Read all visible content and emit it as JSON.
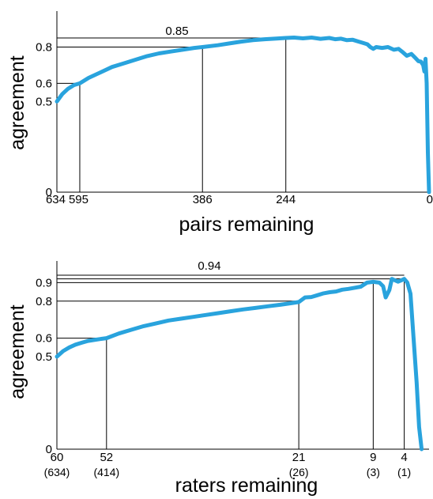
{
  "chart_data": [
    {
      "type": "line",
      "xlabel": "pairs remaining",
      "ylabel": "agreement",
      "x_reversed": true,
      "xlim": [
        634,
        0
      ],
      "ylim": [
        0,
        0.85
      ],
      "x_ticks": [
        {
          "value": 634,
          "label": "634"
        },
        {
          "value": 595,
          "label": "595"
        },
        {
          "value": 386,
          "label": "386"
        },
        {
          "value": 244,
          "label": "244"
        },
        {
          "value": 0,
          "label": "0"
        }
      ],
      "y_ticks": [
        {
          "value": 0,
          "label": "0"
        },
        {
          "value": 0.5,
          "label": "0.5"
        },
        {
          "value": 0.6,
          "label": "0.6"
        },
        {
          "value": 0.8,
          "label": "0.8"
        }
      ],
      "annotation": {
        "label": "0.85",
        "value": 0.85
      },
      "guides": [
        {
          "x": 595,
          "y": 0.6
        },
        {
          "x": 386,
          "y": 0.8
        },
        {
          "x": 244,
          "y": 0.85
        }
      ],
      "color": "#29a3dd",
      "grid": false,
      "series": [
        {
          "x": [
            634,
            625,
            615,
            605,
            595,
            580,
            560,
            540,
            520,
            500,
            480,
            460,
            440,
            420,
            400,
            386,
            360,
            340,
            320,
            300,
            280,
            260,
            244,
            230,
            215,
            200,
            185,
            170,
            160,
            150,
            140,
            130,
            120,
            112,
            105,
            100,
            95,
            90,
            80,
            70,
            60,
            52,
            45,
            38,
            30,
            24,
            18,
            14,
            10,
            8,
            6,
            4,
            2,
            0
          ],
          "y": [
            0.5,
            0.54,
            0.57,
            0.59,
            0.6,
            0.63,
            0.66,
            0.69,
            0.71,
            0.73,
            0.75,
            0.765,
            0.775,
            0.785,
            0.795,
            0.8,
            0.81,
            0.82,
            0.83,
            0.838,
            0.843,
            0.847,
            0.85,
            0.852,
            0.848,
            0.852,
            0.845,
            0.85,
            0.843,
            0.846,
            0.838,
            0.84,
            0.83,
            0.822,
            0.815,
            0.8,
            0.79,
            0.8,
            0.795,
            0.8,
            0.785,
            0.79,
            0.772,
            0.752,
            0.762,
            0.742,
            0.722,
            0.72,
            0.7,
            0.665,
            0.735,
            0.6,
            0.22,
            0.0
          ]
        }
      ]
    },
    {
      "type": "line",
      "xlabel": "raters remaining",
      "ylabel": "agreement",
      "x_reversed": true,
      "xlim": [
        60,
        0
      ],
      "ylim": [
        0,
        0.94
      ],
      "x_ticks": [
        {
          "value": 60,
          "label": "60",
          "sublabel": "(634)"
        },
        {
          "value": 52,
          "label": "52",
          "sublabel": "(414)"
        },
        {
          "value": 21,
          "label": "21",
          "sublabel": "(26)"
        },
        {
          "value": 9,
          "label": "9",
          "sublabel": "(3)"
        },
        {
          "value": 4,
          "label": "4",
          "sublabel": "(1)"
        }
      ],
      "y_ticks": [
        {
          "value": 0,
          "label": "0"
        },
        {
          "value": 0.5,
          "label": "0.5"
        },
        {
          "value": 0.6,
          "label": "0.6"
        },
        {
          "value": 0.8,
          "label": "0.8"
        },
        {
          "value": 0.9,
          "label": "0.9"
        }
      ],
      "annotation": {
        "label": "0.94",
        "value": 0.94
      },
      "guides": [
        {
          "x": 52,
          "y": 0.6
        },
        {
          "x": 21,
          "y": 0.8
        },
        {
          "x": 9,
          "y": 0.9
        },
        {
          "x": 4,
          "y": 0.92
        }
      ],
      "color": "#29a3dd",
      "grid": false,
      "series": [
        {
          "x": [
            60,
            59,
            58,
            57,
            56,
            55,
            54,
            53,
            52,
            50,
            48,
            46,
            44,
            42,
            40,
            38,
            36,
            34,
            32,
            30,
            28,
            26,
            24,
            22,
            21,
            20,
            19,
            18,
            17,
            16,
            15,
            14,
            13,
            12,
            11,
            10,
            9,
            8,
            7.4,
            7,
            6.4,
            6,
            5.6,
            5,
            4.5,
            4,
            3.5,
            3,
            2.5,
            2,
            1.6,
            1.2
          ],
          "y": [
            0.5,
            0.53,
            0.55,
            0.565,
            0.575,
            0.585,
            0.59,
            0.595,
            0.6,
            0.625,
            0.645,
            0.665,
            0.68,
            0.695,
            0.705,
            0.715,
            0.725,
            0.735,
            0.745,
            0.755,
            0.763,
            0.772,
            0.78,
            0.79,
            0.795,
            0.82,
            0.822,
            0.832,
            0.842,
            0.848,
            0.852,
            0.862,
            0.866,
            0.872,
            0.878,
            0.9,
            0.904,
            0.9,
            0.88,
            0.82,
            0.86,
            0.92,
            0.914,
            0.905,
            0.912,
            0.92,
            0.9,
            0.84,
            0.6,
            0.36,
            0.12,
            0.0
          ]
        }
      ]
    }
  ]
}
